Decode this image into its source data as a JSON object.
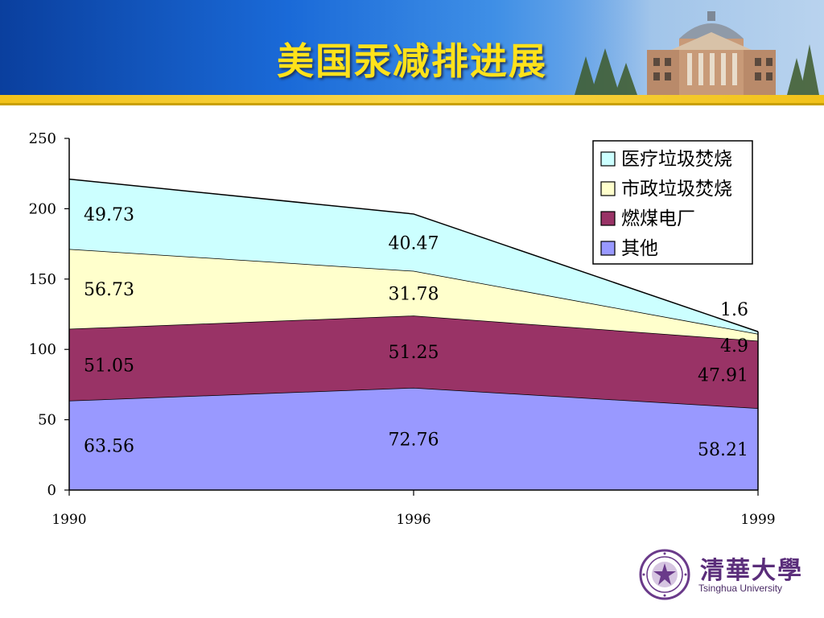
{
  "slide": {
    "title": "美国汞减排进展",
    "logo_cn": "清華大學",
    "logo_en": "Tsinghua University"
  },
  "chart_data": {
    "type": "area",
    "stacked": true,
    "x": [
      "1990",
      "1996",
      "1999"
    ],
    "series": [
      {
        "name": "其他",
        "values": [
          63.56,
          72.76,
          58.21
        ],
        "color": "#9999ff"
      },
      {
        "name": "燃煤电厂",
        "values": [
          51.05,
          51.25,
          47.91
        ],
        "color": "#993366"
      },
      {
        "name": "市政垃圾焚烧",
        "values": [
          56.73,
          31.78,
          4.9
        ],
        "color": "#ffffcc"
      },
      {
        "name": "医疗垃圾焚烧",
        "values": [
          49.73,
          40.47,
          1.6
        ],
        "color": "#ccffff"
      }
    ],
    "data_labels": [
      [
        "63.56",
        "72.76",
        "58.21"
      ],
      [
        "51.05",
        "51.25",
        "47.91"
      ],
      [
        "56.73",
        "31.78",
        "4.9"
      ],
      [
        "49.73",
        "40.47",
        "1.6"
      ]
    ],
    "legend_order": [
      "医疗垃圾焚烧",
      "市政垃圾焚烧",
      "燃煤电厂",
      "其他"
    ],
    "ylim": [
      0,
      250
    ],
    "yticks": [
      "0",
      "50",
      "100",
      "150",
      "200",
      "250"
    ],
    "legend_position": "top-right",
    "grid": false
  }
}
